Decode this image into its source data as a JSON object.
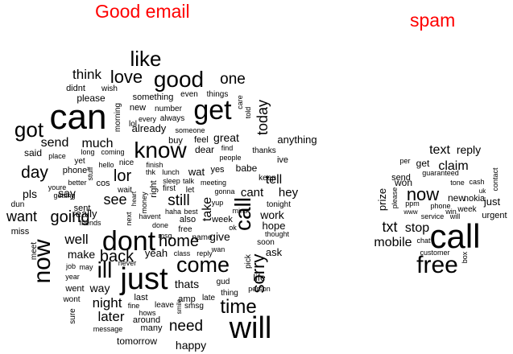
{
  "panels": {
    "good": {
      "title": "Good email",
      "words": [
        "get",
        "can",
        "will",
        "just",
        "dont",
        "know",
        "call",
        "now",
        "good",
        "like",
        "come",
        "got",
        "ill",
        "time",
        "sorry",
        "love",
        "one",
        "home",
        "day",
        "going",
        "lor",
        "back",
        "today",
        "need",
        "still",
        "want",
        "see",
        "think",
        "night",
        "well",
        "send",
        "later",
        "much",
        "take",
        "tell",
        "cant",
        "hey",
        "work",
        "great",
        "make",
        "thats",
        "way",
        "give",
        "say",
        "happy",
        "yeah",
        "really",
        "already",
        "pls",
        "please",
        "ask",
        "anything",
        "hope",
        "life",
        "tomorrow",
        "said",
        "wat",
        "babe",
        "dear",
        "feel",
        "didnt",
        "many",
        "went",
        "last",
        "amp",
        "something",
        "around",
        "sent",
        "miss",
        "name",
        "wish",
        "buy",
        "new",
        "number",
        "even",
        "things",
        "morning",
        "right",
        "meet",
        "sure",
        "yes",
        "ive",
        "thanks",
        "tonight",
        "soon",
        "also",
        "keep",
        "wont",
        "week",
        "person",
        "thought",
        "done",
        "free",
        "first",
        "told",
        "care",
        "always",
        "every",
        "someone",
        "place",
        "long",
        "coming",
        "yet",
        "nice",
        "finish",
        "thk",
        "lunch",
        "hello",
        "better",
        "cos",
        "wait",
        "meeting",
        "people",
        "find",
        "youre",
        "getting",
        "lol",
        "money",
        "next",
        "heart",
        "haha",
        "best",
        "late",
        "thing",
        "class",
        "reply",
        "leave",
        "smile",
        "smsg",
        "fine",
        "hows",
        "message",
        "year",
        "job",
        "may",
        "never",
        "gud",
        "pick",
        "dun",
        "stuff",
        "talk",
        "sleep",
        "phone",
        "gonna",
        "mins",
        "yup",
        "let",
        "friends",
        "havent",
        "msg",
        "wan",
        "ok"
      ]
    },
    "spam": {
      "title": "spam",
      "words": [
        "call",
        "free",
        "now",
        "txt",
        "mobile",
        "claim",
        "text",
        "reply",
        "stop",
        "prize",
        "won",
        "get",
        "send",
        "new",
        "week",
        "just",
        "urgent",
        "nokia",
        "service",
        "customer",
        "tone",
        "cash",
        "guaranteed",
        "contact",
        "please",
        "ppm",
        "phone",
        "win",
        "per",
        "chat",
        "box",
        "will",
        "www",
        "uk"
      ]
    }
  }
}
